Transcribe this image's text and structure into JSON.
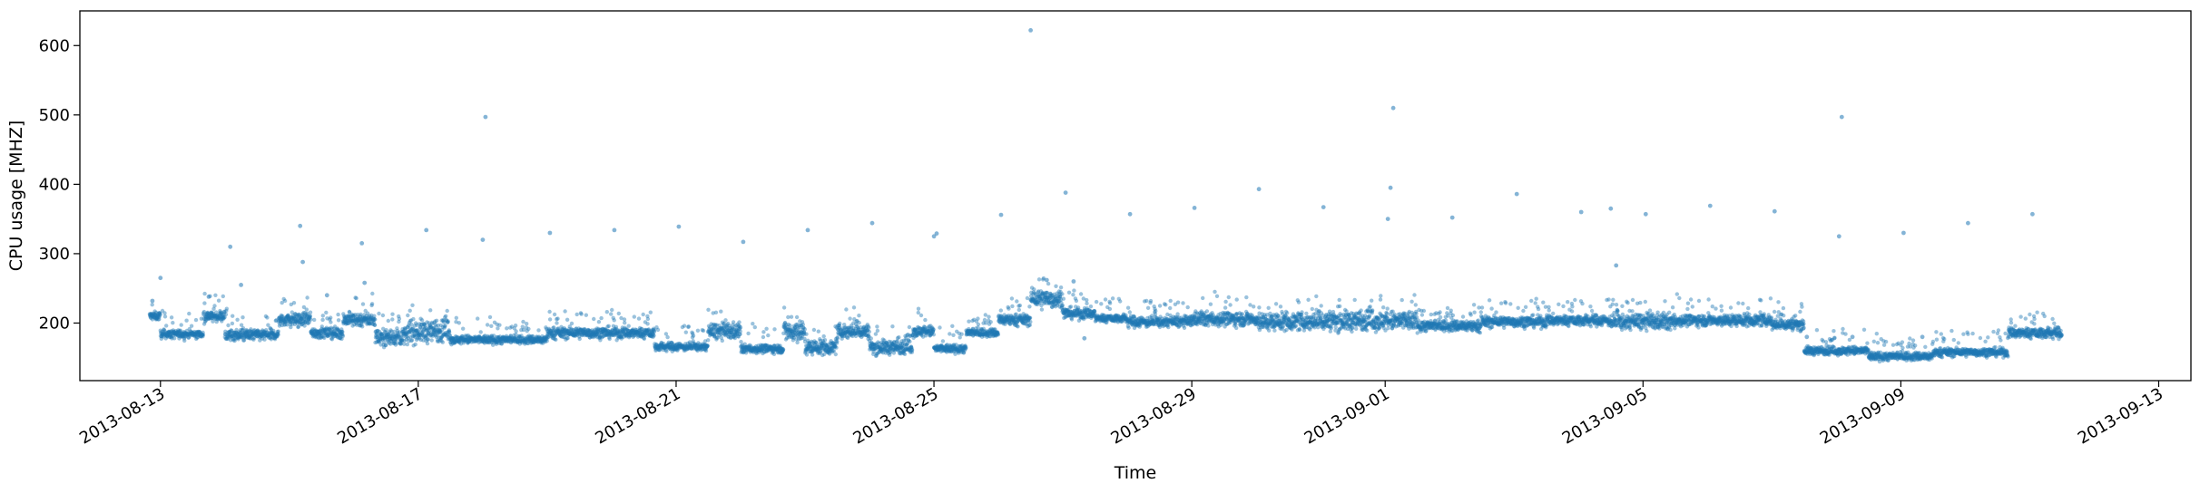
{
  "chart_data": {
    "type": "scatter",
    "title": "",
    "xlabel": "Time",
    "ylabel": "CPU usage [MHZ]",
    "x_type": "date",
    "xlim": [
      "2013-08-11T18:00",
      "2013-09-13T12:00"
    ],
    "ylim": [
      117,
      650
    ],
    "grid": false,
    "legend": "none",
    "colors": {
      "points": "#1f77b4",
      "axes": "#000000",
      "background": "#ffffff"
    },
    "x_ticks": [
      "2013-08-13",
      "2013-08-17",
      "2013-08-21",
      "2013-08-25",
      "2013-08-29",
      "2013-09-01",
      "2013-09-05",
      "2013-09-09",
      "2013-09-13"
    ],
    "y_ticks": [
      200,
      300,
      400,
      500,
      600
    ],
    "baseline_segments": [
      {
        "start": "2013-08-12T20:00",
        "end": "2013-08-13T00:00",
        "value": 210,
        "spread": 3
      },
      {
        "start": "2013-08-13T00:00",
        "end": "2013-08-13T16:00",
        "value": 184,
        "spread": 3
      },
      {
        "start": "2013-08-13T16:00",
        "end": "2013-08-14T00:00",
        "value": 210,
        "spread": 4
      },
      {
        "start": "2013-08-14T00:00",
        "end": "2013-08-14T20:00",
        "value": 183,
        "spread": 4
      },
      {
        "start": "2013-08-14T20:00",
        "end": "2013-08-15T08:00",
        "value": 205,
        "spread": 5
      },
      {
        "start": "2013-08-15T08:00",
        "end": "2013-08-15T20:00",
        "value": 186,
        "spread": 4
      },
      {
        "start": "2013-08-15T20:00",
        "end": "2013-08-16T08:00",
        "value": 205,
        "spread": 5
      },
      {
        "start": "2013-08-16T08:00",
        "end": "2013-08-16T20:00",
        "value": 180,
        "spread": 6
      },
      {
        "start": "2013-08-16T20:00",
        "end": "2013-08-17T12:00",
        "value": 188,
        "spread": 8
      },
      {
        "start": "2013-08-17T12:00",
        "end": "2013-08-19T00:00",
        "value": 176,
        "spread": 3
      },
      {
        "start": "2013-08-19T00:00",
        "end": "2013-08-20T16:00",
        "value": 186,
        "spread": 4
      },
      {
        "start": "2013-08-20T16:00",
        "end": "2013-08-21T12:00",
        "value": 166,
        "spread": 3
      },
      {
        "start": "2013-08-21T12:00",
        "end": "2013-08-22T00:00",
        "value": 188,
        "spread": 6
      },
      {
        "start": "2013-08-22T00:00",
        "end": "2013-08-22T16:00",
        "value": 163,
        "spread": 3
      },
      {
        "start": "2013-08-22T16:00",
        "end": "2013-08-23T00:00",
        "value": 188,
        "spread": 8
      },
      {
        "start": "2013-08-23T00:00",
        "end": "2013-08-23T12:00",
        "value": 165,
        "spread": 5
      },
      {
        "start": "2013-08-23T12:00",
        "end": "2013-08-24T00:00",
        "value": 188,
        "spread": 5
      },
      {
        "start": "2013-08-24T00:00",
        "end": "2013-08-24T16:00",
        "value": 165,
        "spread": 5
      },
      {
        "start": "2013-08-24T16:00",
        "end": "2013-08-25T00:00",
        "value": 188,
        "spread": 4
      },
      {
        "start": "2013-08-25T00:00",
        "end": "2013-08-25T12:00",
        "value": 163,
        "spread": 3
      },
      {
        "start": "2013-08-25T12:00",
        "end": "2013-08-26T00:00",
        "value": 186,
        "spread": 3
      },
      {
        "start": "2013-08-26T00:00",
        "end": "2013-08-26T12:00",
        "value": 205,
        "spread": 4
      },
      {
        "start": "2013-08-26T12:00",
        "end": "2013-08-27T00:00",
        "value": 235,
        "spread": 7
      },
      {
        "start": "2013-08-27T00:00",
        "end": "2013-08-27T12:00",
        "value": 214,
        "spread": 4
      },
      {
        "start": "2013-08-27T12:00",
        "end": "2013-08-28T00:00",
        "value": 207,
        "spread": 3
      },
      {
        "start": "2013-08-28T00:00",
        "end": "2013-08-29T00:00",
        "value": 202,
        "spread": 4
      },
      {
        "start": "2013-08-29T00:00",
        "end": "2013-08-30T00:00",
        "value": 206,
        "spread": 5
      },
      {
        "start": "2013-08-30T00:00",
        "end": "2013-08-31T00:00",
        "value": 202,
        "spread": 6
      },
      {
        "start": "2013-08-31T00:00",
        "end": "2013-09-01T12:00",
        "value": 203,
        "spread": 7
      },
      {
        "start": "2013-09-01T12:00",
        "end": "2013-09-02T12:00",
        "value": 196,
        "spread": 4
      },
      {
        "start": "2013-09-02T12:00",
        "end": "2013-09-03T12:00",
        "value": 202,
        "spread": 4
      },
      {
        "start": "2013-09-03T12:00",
        "end": "2013-09-04T12:00",
        "value": 204,
        "spread": 4
      },
      {
        "start": "2013-09-04T12:00",
        "end": "2013-09-05T12:00",
        "value": 202,
        "spread": 6
      },
      {
        "start": "2013-09-05T12:00",
        "end": "2013-09-07T00:00",
        "value": 204,
        "spread": 4
      },
      {
        "start": "2013-09-07T00:00",
        "end": "2013-09-07T12:00",
        "value": 198,
        "spread": 4
      },
      {
        "start": "2013-09-07T12:00",
        "end": "2013-09-08T12:00",
        "value": 160,
        "spread": 3
      },
      {
        "start": "2013-09-08T12:00",
        "end": "2013-09-09T12:00",
        "value": 152,
        "spread": 3
      },
      {
        "start": "2013-09-09T12:00",
        "end": "2013-09-10T16:00",
        "value": 158,
        "spread": 3
      },
      {
        "start": "2013-09-10T16:00",
        "end": "2013-09-11T12:00",
        "value": 186,
        "spread": 4
      }
    ],
    "outliers": [
      {
        "x": "2013-08-12T21:00",
        "y": 232
      },
      {
        "x": "2013-08-13T00:00",
        "y": 265
      },
      {
        "x": "2013-08-13T18:00",
        "y": 238
      },
      {
        "x": "2013-08-14T02:00",
        "y": 310
      },
      {
        "x": "2013-08-14T06:00",
        "y": 255
      },
      {
        "x": "2013-08-15T04:00",
        "y": 340
      },
      {
        "x": "2013-08-15T05:00",
        "y": 288
      },
      {
        "x": "2013-08-15T14:00",
        "y": 240
      },
      {
        "x": "2013-08-16T03:00",
        "y": 315
      },
      {
        "x": "2013-08-16T04:00",
        "y": 258
      },
      {
        "x": "2013-08-17T03:00",
        "y": 334
      },
      {
        "x": "2013-08-18T00:00",
        "y": 320
      },
      {
        "x": "2013-08-18T01:00",
        "y": 497
      },
      {
        "x": "2013-08-19T01:00",
        "y": 330
      },
      {
        "x": "2013-08-20T01:00",
        "y": 334
      },
      {
        "x": "2013-08-21T01:00",
        "y": 339
      },
      {
        "x": "2013-08-22T01:00",
        "y": 317
      },
      {
        "x": "2013-08-23T01:00",
        "y": 334
      },
      {
        "x": "2013-08-24T01:00",
        "y": 344
      },
      {
        "x": "2013-08-25T00:00",
        "y": 325
      },
      {
        "x": "2013-08-25T01:00",
        "y": 329
      },
      {
        "x": "2013-08-26T01:00",
        "y": 356
      },
      {
        "x": "2013-08-26T12:00",
        "y": 622
      },
      {
        "x": "2013-08-27T01:00",
        "y": 388
      },
      {
        "x": "2013-08-28T01:00",
        "y": 357
      },
      {
        "x": "2013-08-29T01:00",
        "y": 366
      },
      {
        "x": "2013-08-30T01:00",
        "y": 393
      },
      {
        "x": "2013-08-31T01:00",
        "y": 367
      },
      {
        "x": "2013-09-01T01:00",
        "y": 350
      },
      {
        "x": "2013-09-01T02:00",
        "y": 395
      },
      {
        "x": "2013-09-01T03:00",
        "y": 510
      },
      {
        "x": "2013-09-02T01:00",
        "y": 352
      },
      {
        "x": "2013-09-03T01:00",
        "y": 386
      },
      {
        "x": "2013-09-04T01:00",
        "y": 360
      },
      {
        "x": "2013-09-04T12:00",
        "y": 365
      },
      {
        "x": "2013-09-04T14:00",
        "y": 283
      },
      {
        "x": "2013-09-05T01:00",
        "y": 357
      },
      {
        "x": "2013-09-06T01:00",
        "y": 369
      },
      {
        "x": "2013-09-07T01:00",
        "y": 361
      },
      {
        "x": "2013-09-08T01:00",
        "y": 325
      },
      {
        "x": "2013-09-08T02:00",
        "y": 497
      },
      {
        "x": "2013-09-09T01:00",
        "y": 330
      },
      {
        "x": "2013-09-10T01:00",
        "y": 344
      },
      {
        "x": "2013-09-11T01:00",
        "y": 357
      },
      {
        "x": "2013-08-26T18:00",
        "y": 262
      },
      {
        "x": "2013-08-27T04:00",
        "y": 260
      },
      {
        "x": "2013-08-27T08:00",
        "y": 178
      },
      {
        "x": "2013-09-07T13:00",
        "y": 180
      },
      {
        "x": "2013-09-08T06:00",
        "y": 180
      },
      {
        "x": "2013-09-09T08:00",
        "y": 180
      }
    ]
  }
}
